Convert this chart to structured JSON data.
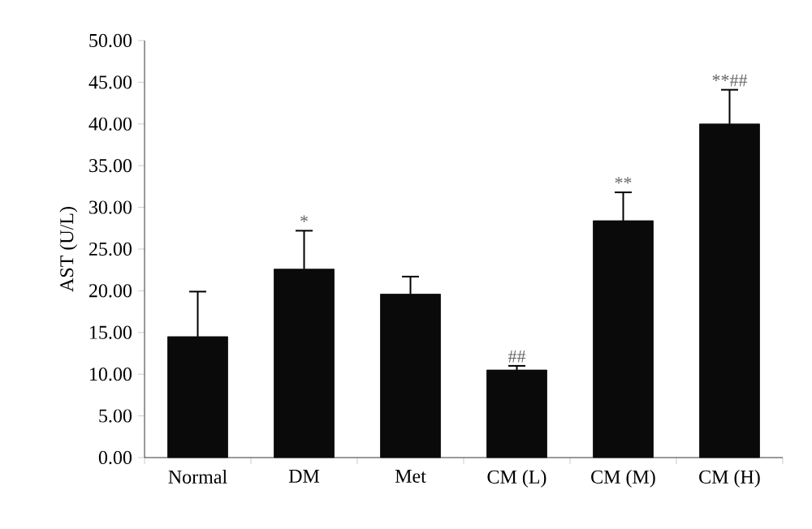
{
  "chart_data": {
    "type": "bar",
    "ylabel": "AST (U/L)",
    "categories": [
      "Normal",
      "DM",
      "Met",
      "CM (L)",
      "CM (M)",
      "CM (H)"
    ],
    "values": [
      14.5,
      22.6,
      19.6,
      10.5,
      28.4,
      40.0
    ],
    "errors": [
      [
        14.5,
        19.9
      ],
      [
        22.6,
        27.2
      ],
      [
        19.6,
        21.7
      ],
      [
        10.5,
        11.0
      ],
      [
        28.4,
        31.8
      ],
      [
        40.0,
        44.1
      ]
    ],
    "color": "#0a0a0a",
    "ylim": [
      0,
      50
    ],
    "yticks": [
      {
        "value": 0,
        "label": "0.00"
      },
      {
        "value": 5,
        "label": "5.00"
      },
      {
        "value": 10,
        "label": "10.00"
      },
      {
        "value": 15,
        "label": "15.00"
      },
      {
        "value": 20,
        "label": "20.00"
      },
      {
        "value": 25,
        "label": "25.00"
      },
      {
        "value": 30,
        "label": "30.00"
      },
      {
        "value": 35,
        "label": "35.00"
      },
      {
        "value": 40,
        "label": "40.00"
      },
      {
        "value": 45,
        "label": "45.00"
      },
      {
        "value": 50,
        "label": "50.00"
      }
    ],
    "annotations": [
      {
        "text": "*",
        "x": "DM",
        "y": 27.2
      },
      {
        "text": "##",
        "x": "CM (L)",
        "y": 11.0
      },
      {
        "text": "**",
        "x": "CM (M)",
        "y": 31.8
      },
      {
        "text": "**##",
        "x": "CM (H)",
        "y": 44.1
      }
    ]
  }
}
